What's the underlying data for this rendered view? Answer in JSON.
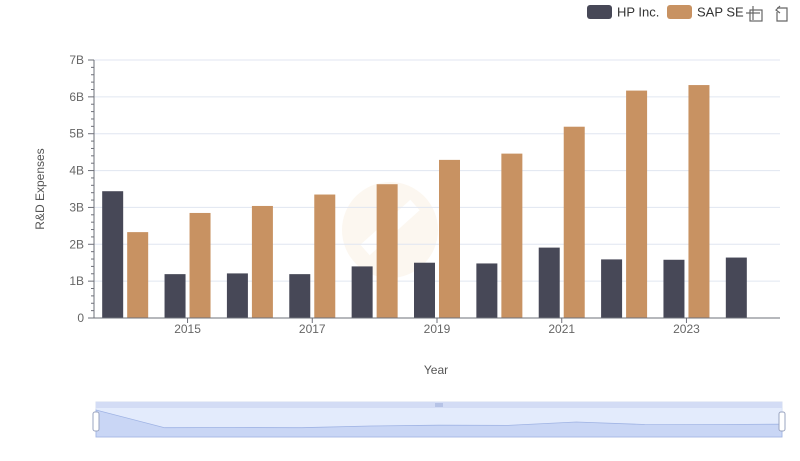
{
  "chart_data": {
    "type": "bar",
    "title": "",
    "xlabel": "Year",
    "ylabel": "R&D Expenses",
    "categories": [
      "2014",
      "2015",
      "2016",
      "2017",
      "2018",
      "2019",
      "2020",
      "2021",
      "2022",
      "2023",
      "2024"
    ],
    "x_tick_labels": [
      "2015",
      "2017",
      "2019",
      "2021",
      "2023"
    ],
    "y_tick_labels": [
      "0",
      "1B",
      "2B",
      "3B",
      "4B",
      "5B",
      "6B",
      "7B"
    ],
    "ylim": [
      0,
      7000000000
    ],
    "grid": true,
    "legend_position": "top-right",
    "series": [
      {
        "name": "HP Inc.",
        "color": "#474857",
        "values": [
          3440000000,
          1190000000,
          1210000000,
          1190000000,
          1400000000,
          1500000000,
          1480000000,
          1910000000,
          1590000000,
          1580000000,
          1640000000
        ]
      },
      {
        "name": "SAP SE",
        "color": "#c89262",
        "values": [
          2330000000,
          2850000000,
          3040000000,
          3350000000,
          3630000000,
          4290000000,
          4460000000,
          5190000000,
          6170000000,
          6320000000,
          null
        ]
      }
    ]
  },
  "toolbar": {
    "zoom_icon": "zoom-select-icon",
    "restore_icon": "restore-icon"
  },
  "data_zoom": {
    "handle_icon": "drag-handle-icon"
  }
}
